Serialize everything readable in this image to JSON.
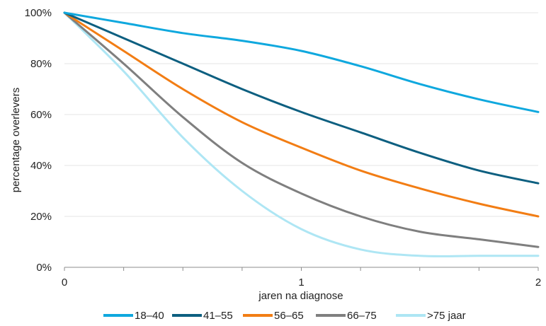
{
  "chart_data": {
    "type": "line",
    "title": "",
    "xlabel": "jaren na diagnose",
    "ylabel": "percentage overlevers",
    "xlim": [
      0,
      2
    ],
    "ylim": [
      0,
      100
    ],
    "x_ticks": [
      0,
      1,
      2
    ],
    "x_ticks_text": [
      "0",
      "1",
      "2"
    ],
    "x_minor_tick_step": 0.25,
    "y_ticks": [
      0,
      20,
      40,
      60,
      80,
      100
    ],
    "y_ticks_text": [
      "0%",
      "20%",
      "40%",
      "60%",
      "80%",
      "100%"
    ],
    "grid": {
      "horizontal": true,
      "vertical": false,
      "color": "#e6e6e6"
    },
    "legend": {
      "position": "bottom"
    },
    "series": [
      {
        "name": "18–40",
        "color": "#0fa8de",
        "x": [
          0,
          0.25,
          0.5,
          0.75,
          1.0,
          1.25,
          1.5,
          1.75,
          2.0
        ],
        "y": [
          100,
          96,
          92,
          89,
          85,
          79,
          72,
          66,
          61
        ]
      },
      {
        "name": "41–55",
        "color": "#0d5f80",
        "x": [
          0,
          0.25,
          0.5,
          0.75,
          1.0,
          1.25,
          1.5,
          1.75,
          2.0
        ],
        "y": [
          100,
          90,
          80,
          70,
          61,
          53,
          45,
          38,
          33
        ]
      },
      {
        "name": "56–65",
        "color": "#f27d14",
        "x": [
          0,
          0.25,
          0.5,
          0.75,
          1.0,
          1.25,
          1.5,
          1.75,
          2.0
        ],
        "y": [
          100,
          85,
          70,
          57,
          47,
          38,
          31,
          25,
          20
        ]
      },
      {
        "name": "66–75",
        "color": "#7f7f7f",
        "x": [
          0,
          0.25,
          0.5,
          0.75,
          1.0,
          1.25,
          1.5,
          1.75,
          2.0
        ],
        "y": [
          100,
          80,
          59,
          41,
          29,
          20,
          14,
          11,
          8
        ]
      },
      {
        "name": ">75 jaar",
        "color": "#aee6f4",
        "x": [
          0,
          0.25,
          0.5,
          0.75,
          1.0,
          1.25,
          1.5,
          1.75,
          2.0
        ],
        "y": [
          100,
          77,
          51,
          30,
          15,
          7,
          4.5,
          4.5,
          4.5
        ]
      }
    ]
  }
}
